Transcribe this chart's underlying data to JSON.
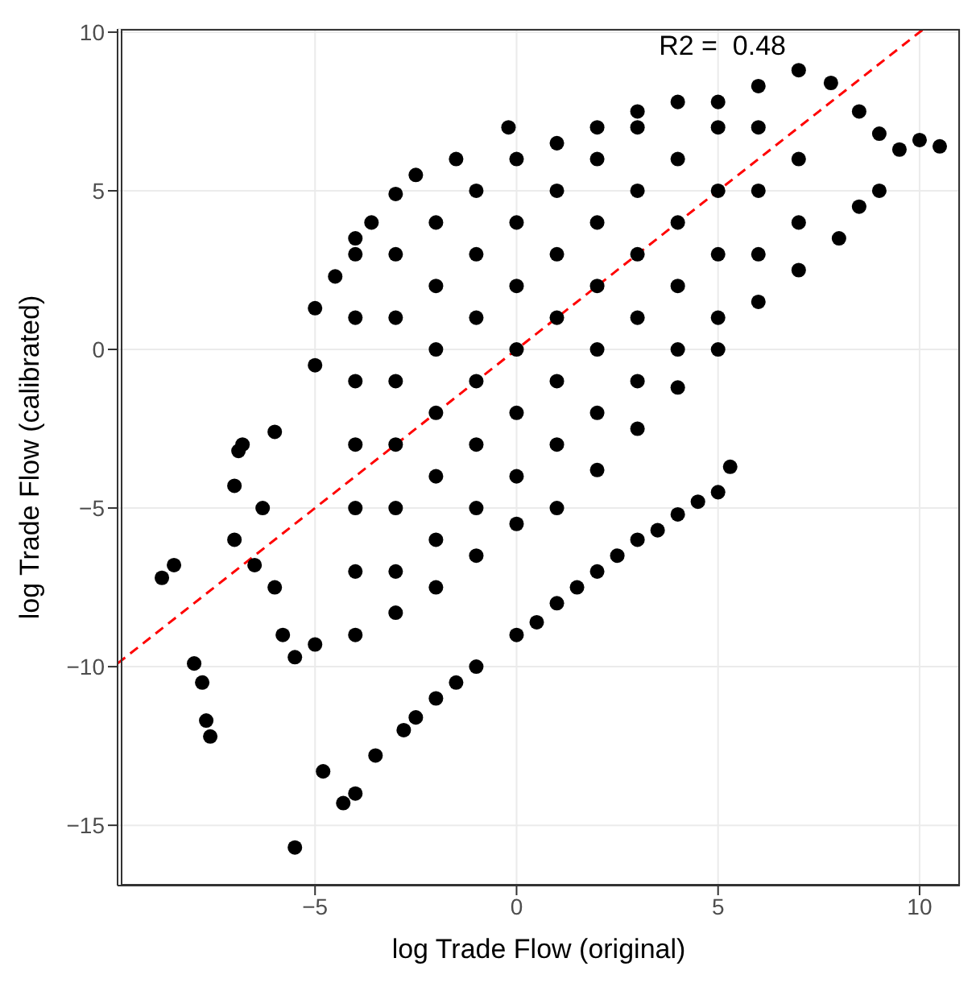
{
  "chart_data": {
    "type": "scatter",
    "xlabel": "log Trade Flow (original)",
    "ylabel": "log Trade Flow (calibrated)",
    "annotations": [
      "R2 =  0.48"
    ],
    "xlim": [
      -9.9,
      11
    ],
    "ylim": [
      -16.9,
      10.1
    ],
    "xticks": [
      -5,
      0,
      5,
      10
    ],
    "yticks": [
      -15,
      -10,
      -5,
      0,
      5,
      10
    ],
    "grid": true,
    "legend": false,
    "marker": "circle",
    "series": [
      {
        "color": "#000000",
        "x": [
          -7,
          -6.8,
          -6,
          -5,
          -5,
          -4.5,
          -4,
          -3.6,
          -3,
          -2.5,
          -1.5,
          -0.2,
          1,
          2,
          3,
          4,
          5,
          6,
          7,
          7.8,
          8.5,
          9,
          10,
          10.5,
          9.5,
          -7,
          -6.5,
          -6,
          -5.8,
          -5.5,
          -5,
          -4,
          -3,
          -2,
          -1,
          0,
          1,
          2,
          3,
          4,
          5,
          6,
          7,
          8.5,
          9,
          8,
          -8.8,
          -8.5,
          -8,
          -7.7,
          -7.6,
          -7.8,
          -5.5,
          -4.8,
          -4.3,
          -4,
          -6.3,
          -6.9,
          -3.5,
          -2.8,
          -2,
          -1,
          0,
          1,
          2,
          3,
          4,
          4.5,
          5,
          5.3,
          -2.5,
          -1.5,
          0.5,
          1.5,
          2.5,
          3.5,
          -4,
          -4,
          -4,
          -4,
          -4,
          -4,
          -3,
          -3,
          -3,
          -3,
          -3,
          -3,
          -2,
          -2,
          -2,
          -2,
          -2,
          -2,
          -1,
          -1,
          -1,
          -1,
          -1,
          -1,
          0,
          0,
          0,
          0,
          0,
          0,
          1,
          1,
          1,
          1,
          1,
          2,
          2,
          2,
          2,
          2,
          3,
          3,
          3,
          3,
          3,
          4,
          4,
          4,
          4,
          5,
          5,
          5,
          5,
          6,
          6,
          6,
          7,
          7
        ],
        "values": [
          -4.3,
          -3,
          -2.6,
          -0.5,
          1.3,
          2.3,
          3.5,
          4,
          4.9,
          5.5,
          6,
          7,
          6.5,
          7,
          7.5,
          7.8,
          7.8,
          8.3,
          8.8,
          8.4,
          7.5,
          6.8,
          6.6,
          6.4,
          6.3,
          -6,
          -6.8,
          -7.5,
          -9,
          -9.7,
          -9.3,
          -9,
          -8.3,
          -7.5,
          -6.5,
          -5.5,
          -5,
          -3.8,
          -2.5,
          -1.2,
          0,
          1.5,
          2.5,
          4.5,
          5,
          3.5,
          -7.2,
          -6.8,
          -9.9,
          -11.7,
          -12.2,
          -10.5,
          -15.7,
          -13.3,
          -14.3,
          -14,
          -5,
          -3.2,
          -12.8,
          -12,
          -11,
          -10,
          -9,
          -8,
          -7,
          -6,
          -5.2,
          -4.8,
          -4.5,
          -3.7,
          -11.6,
          -10.5,
          -8.6,
          -7.5,
          -6.5,
          -5.7,
          -7,
          -5,
          -3,
          -1,
          1,
          3,
          -7,
          -5,
          -3,
          -1,
          1,
          3,
          -6,
          -4,
          -2,
          0,
          2,
          4,
          -5,
          -3,
          -1,
          1,
          3,
          5,
          -4,
          -2,
          0,
          2,
          4,
          6,
          -3,
          -1,
          1,
          3,
          5,
          -2,
          0,
          2,
          4,
          6,
          -1,
          1,
          3,
          5,
          7,
          0,
          2,
          4,
          6,
          1,
          3,
          5,
          7,
          3,
          5,
          7,
          4,
          6
        ]
      },
      {
        "type": "line",
        "marker": "none",
        "color": "#ff0000",
        "line_style": "dashed",
        "x": [
          -9.9,
          10.1
        ],
        "values": [
          -9.9,
          10.1
        ]
      }
    ]
  }
}
